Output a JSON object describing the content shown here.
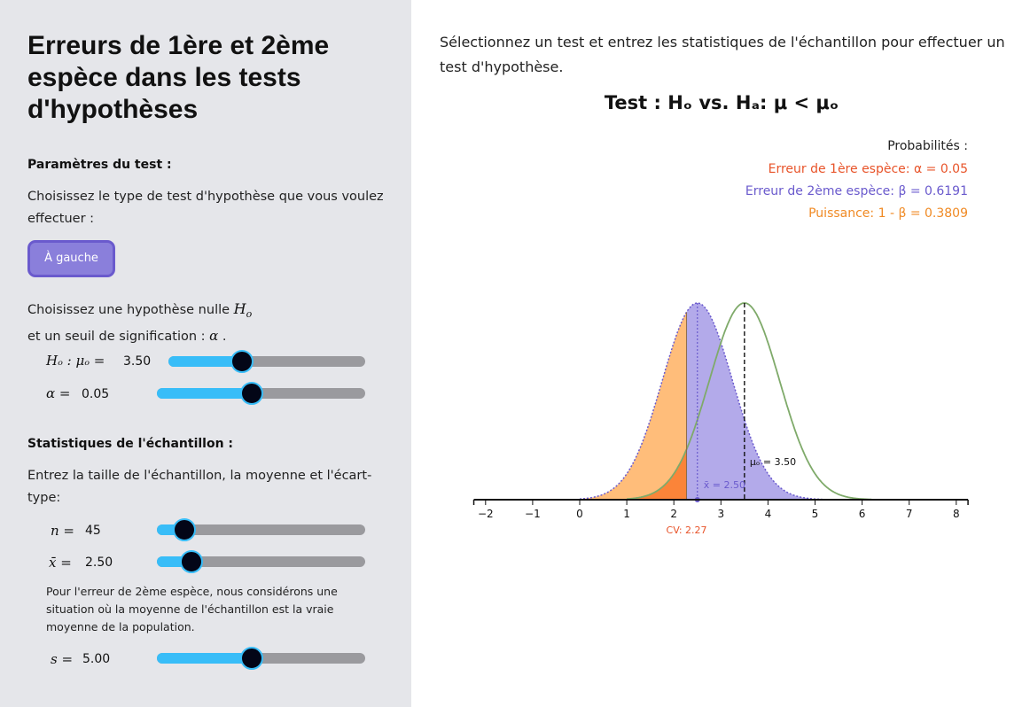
{
  "sidebar": {
    "title": "Erreurs de 1ère et 2ème espèce dans les tests d'hypothèses",
    "test_params_heading": "Paramètres du test :",
    "choose_test_text": "Choisissez le type de test d'hypothèse que vous voulez effectuer :",
    "test_button": "À gauche",
    "choose_h0_text_a": "Choisissez une hypothèse nulle",
    "choose_h0_text_b": "et un seuil de signification :",
    "h0_symbol": "H",
    "h0_sub": "o",
    "alpha_symbol": "α",
    "sliders_top": {
      "mu0": {
        "label": "Hₒ : μₒ =",
        "value": "3.50",
        "fraction": 0.37
      },
      "alpha": {
        "label": "α =",
        "value": "0.05",
        "fraction": 0.45
      }
    },
    "sample_heading": "Statistiques de l'échantillon :",
    "sample_text": "Entrez la taille de l'échantillon, la moyenne et l'écart-type:",
    "sliders_bottom": {
      "n": {
        "label": "n =",
        "value": "45",
        "fraction": 0.13
      },
      "xbar": {
        "label": "x̄ =",
        "value": "2.50",
        "fraction": 0.16
      },
      "s": {
        "label": "s =",
        "value": "5.00",
        "fraction": 0.45
      }
    },
    "note": "Pour l'erreur de 2ème espèce, nous considérons une situation où la moyenne de l'échantillon est la vraie moyenne de la population."
  },
  "main": {
    "intro": "Sélectionnez un test et entrez les statistiques de l'échantillon pour effectuer un test d'hypothèse.",
    "test_title": "Test : Hₒ vs. Hₐ: μ < μₒ",
    "prob_heading": "Probabilités :",
    "type1": "Erreur de 1ère espèce: α = 0.05",
    "type2": "Erreur de 2ème espèce: β = 0.6191",
    "power": "Puissance: 1 - β = 0.3809",
    "colors": {
      "type1": "#e8542a",
      "type2": "#6a5acd",
      "power": "#f08a24",
      "h0_curve": "#7faa6a",
      "alt_fill": "#b3aaea",
      "power_fill": "#ffbd7a",
      "alpha_fill": "#fb8439",
      "accent": "#38bdf8"
    }
  },
  "chart_data": {
    "type": "area",
    "x_ticks": [
      "−2",
      "−1",
      "0",
      "1",
      "2",
      "3",
      "4",
      "5",
      "6",
      "7",
      "8"
    ],
    "xlim": [
      -2.25,
      8.25
    ],
    "mu0": 3.5,
    "xbar": 2.5,
    "sd_dist": 0.745,
    "cv": 2.27,
    "mu0_label": "μₒ = 3.50",
    "xbar_label": "x̄ = 2.50",
    "cv_label": "CV: 2.27"
  }
}
